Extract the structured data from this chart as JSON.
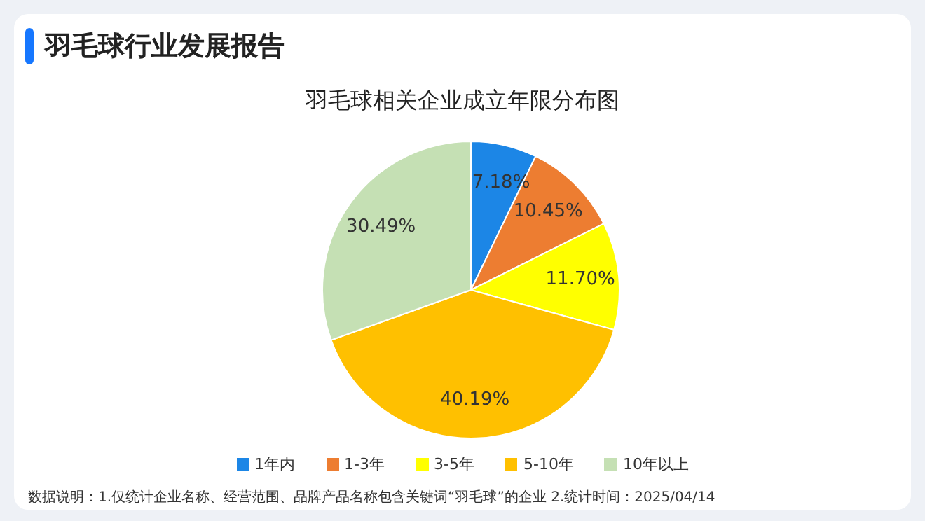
{
  "chart_data": {
    "type": "pie",
    "title": "羽毛球行业发展报告",
    "subtitle": "羽毛球相关企业成立年限分布图",
    "categories": [
      "1年内",
      "1-3年",
      "3-5年",
      "5-10年",
      "10年以上"
    ],
    "values": [
      7.18,
      10.45,
      11.7,
      40.19,
      30.49
    ],
    "value_labels": [
      "7.18%",
      "10.45%",
      "11.70%",
      "40.19%",
      "30.49%"
    ],
    "colors": [
      "#1c86e6",
      "#ed7d31",
      "#ffff00",
      "#ffc000",
      "#c5e0b4"
    ],
    "legend": "bottom",
    "annotations": [
      "数据说明：1.仅统计企业名称、经营范围、品牌产品名称包含关键词“羽毛球”的企业 2.统计时间：2025/04/14"
    ]
  }
}
